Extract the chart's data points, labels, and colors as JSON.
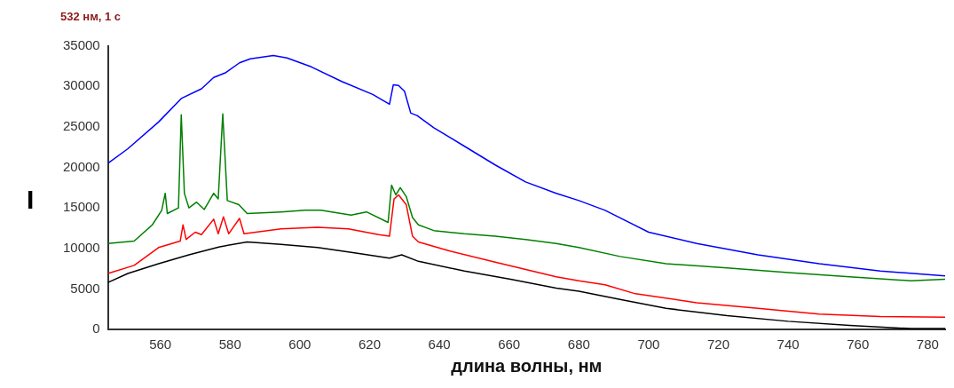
{
  "chart_data": {
    "type": "line",
    "title": "532 нм, 1 с",
    "xlabel": "длина волны, нм",
    "ylabel": "I",
    "xlim": [
      545,
      785
    ],
    "xticks": [
      560,
      580,
      600,
      620,
      640,
      660,
      680,
      700,
      720,
      740,
      760,
      780
    ],
    "ylim": [
      0,
      35000
    ],
    "yticks": [
      0,
      5000,
      10000,
      15000,
      20000,
      25000,
      30000,
      35000
    ],
    "series": [
      {
        "color": "#0000ff",
        "x": [
          545,
          550.7,
          559.5,
          566,
          571.8,
          575.3,
          578.8,
          582.7,
          585.8,
          592.4,
          596.3,
          603.3,
          612,
          620.9,
          625.7,
          626.8,
          628.3,
          630,
          631.8,
          633.6,
          638.4,
          647.2,
          656,
          664.7,
          673.5,
          680,
          687.5,
          700,
          713.8,
          731.3,
          748.9,
          766.4,
          785
        ],
        "values": [
          20500,
          22300,
          25600,
          28500,
          29700,
          31100,
          31700,
          32900,
          33400,
          33800,
          33500,
          32400,
          30600,
          29000,
          27800,
          30200,
          30100,
          29400,
          26700,
          26400,
          24900,
          22600,
          20300,
          18200,
          16800,
          15900,
          14700,
          12000,
          10600,
          9200,
          8100,
          7200,
          6600
        ]
      },
      {
        "color": "#008000",
        "x": [
          545,
          552.5,
          557.7,
          560.4,
          561.4,
          562,
          565.2,
          566,
          566.9,
          568.2,
          570.4,
          572.6,
          575.3,
          576.6,
          577.9,
          579.2,
          582.5,
          584.9,
          594.6,
          601.6,
          606,
          614.7,
          619.1,
          625.3,
          626.3,
          627.5,
          628.8,
          630.5,
          632.3,
          634,
          638.4,
          647.2,
          656,
          664.7,
          673.5,
          680,
          691.8,
          705,
          722.5,
          740,
          757.6,
          775.2,
          785
        ],
        "values": [
          10600,
          10900,
          12900,
          14700,
          16800,
          14300,
          15000,
          26500,
          16800,
          15000,
          15700,
          14800,
          16800,
          16100,
          26600,
          15900,
          15400,
          14300,
          14500,
          14700,
          14700,
          14100,
          14500,
          13200,
          17800,
          16600,
          17500,
          16400,
          13800,
          12900,
          12200,
          11800,
          11500,
          11100,
          10600,
          10100,
          9000,
          8100,
          7600,
          7000,
          6500,
          6000,
          6200
        ]
      },
      {
        "color": "#ff0000",
        "x": [
          545,
          552.5,
          559.5,
          565.7,
          566.5,
          567.4,
          570,
          571.8,
          575.3,
          576.6,
          578.1,
          579.6,
          582.7,
          584,
          594.6,
          605.1,
          613.9,
          622.6,
          625.7,
          627,
          628.3,
          630.5,
          632.3,
          634,
          642.8,
          656,
          673.5,
          680,
          687.5,
          696.2,
          713.8,
          731.3,
          748.9,
          766.4,
          785
        ],
        "values": [
          6900,
          7900,
          10100,
          10900,
          12900,
          11100,
          12000,
          11700,
          13600,
          11800,
          13900,
          11800,
          13700,
          11800,
          12400,
          12600,
          12400,
          11700,
          11500,
          16100,
          16600,
          15400,
          11500,
          10800,
          9700,
          8300,
          6500,
          6000,
          5500,
          4400,
          3300,
          2600,
          1900,
          1600,
          1500
        ]
      },
      {
        "color": "#000000",
        "x": [
          545,
          550.7,
          559.5,
          568.2,
          577,
          584.9,
          594.6,
          605.1,
          616.5,
          625.7,
          629.2,
          634,
          647.2,
          660.4,
          673.5,
          680,
          691.8,
          705,
          722.5,
          740,
          757.6,
          775.2,
          785
        ],
        "values": [
          5800,
          6900,
          8100,
          9200,
          10200,
          10800,
          10500,
          10100,
          9400,
          8800,
          9200,
          8400,
          7200,
          6200,
          5100,
          4700,
          3700,
          2600,
          1700,
          1000,
          500,
          100,
          100
        ]
      }
    ]
  }
}
